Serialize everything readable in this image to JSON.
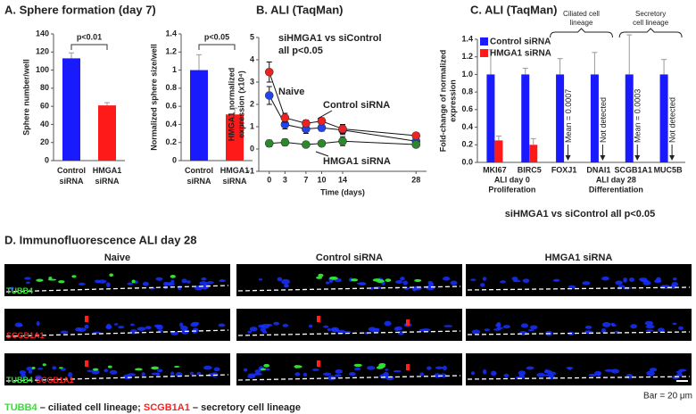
{
  "chart_data": [
    {
      "type": "bar",
      "title": "A. Sphere formation (day 7)",
      "ylabel": "Sphere number/well",
      "categories": [
        "Control siRNA",
        "HMGA1 siRNA"
      ],
      "values": [
        113,
        61
      ],
      "errors": [
        6,
        3
      ],
      "colors": [
        "#1a1aff",
        "#ff1a1a"
      ],
      "ylim": [
        0,
        140
      ],
      "yticks": [
        0,
        20,
        40,
        60,
        80,
        100,
        120,
        140
      ],
      "annotation": "p<0.01"
    },
    {
      "type": "bar",
      "ylabel": "Normalized sphere size/well",
      "categories": [
        "Control siRNA",
        "HMGA1 siRNA"
      ],
      "values": [
        1.0,
        0.51
      ],
      "errors": [
        0.17,
        0.07
      ],
      "colors": [
        "#1a1aff",
        "#ff1a1a"
      ],
      "ylim": [
        0,
        1.4
      ],
      "yticks": [
        0,
        0.2,
        0.4,
        0.6,
        0.8,
        1,
        1.2,
        1.4
      ],
      "annotation": "p<0.05"
    },
    {
      "type": "line",
      "title": "B. ALI (TaqMan)",
      "xlabel": "Time (days)",
      "ylabel": "HMGA1 normalized expression (x10⁴)",
      "x": [
        0,
        3,
        7,
        10,
        14,
        28
      ],
      "xlim": [
        -2,
        30
      ],
      "xticks": [
        0,
        3,
        7,
        10,
        14,
        28
      ],
      "ylim": [
        -1,
        5
      ],
      "yticks": [
        -1,
        0,
        1,
        2,
        3,
        4,
        5
      ],
      "series": [
        {
          "name": "Naive",
          "color": "#2244ee",
          "values": [
            2.4,
            1.1,
            0.9,
            0.95,
            0.85,
            0.35
          ],
          "errors": [
            0.4,
            0.2,
            0.2,
            0.15,
            0.2,
            0.1
          ]
        },
        {
          "name": "Control siRNA",
          "color": "#ee2222",
          "values": [
            3.45,
            1.4,
            1.15,
            1.25,
            0.9,
            0.6
          ],
          "errors": [
            0.45,
            0.2,
            0.15,
            0.15,
            0.2,
            0.1
          ]
        },
        {
          "name": "HMGA1 siRNA",
          "color": "#2a8a2a",
          "values": [
            0.25,
            0.3,
            0.2,
            0.25,
            0.35,
            0.2
          ],
          "errors": [
            0.15,
            0.15,
            0.1,
            0.1,
            0.2,
            0.1
          ]
        }
      ],
      "annotations": [
        "siHMGA1 vs siControl",
        "all p<0.05"
      ]
    },
    {
      "type": "bar",
      "title": "C. ALI (TaqMan)",
      "ylabel": "Fold-change of normalized expression",
      "categories": [
        "MKI67",
        "BIRC5",
        "FOXJ1",
        "DNAI1",
        "SCGB1A1",
        "MUC5B"
      ],
      "series": [
        {
          "name": "Control siRNA",
          "color": "#1a1aff",
          "values": [
            1,
            1,
            1,
            1,
            1,
            1
          ],
          "errors": [
            0.28,
            0.07,
            0.18,
            0.25,
            0.45,
            0.17
          ]
        },
        {
          "name": "HMGA1 siRNA",
          "color": "#ff1a1a",
          "values": [
            0.25,
            0.2,
            0.0007,
            null,
            0.0003,
            null
          ],
          "errors": [
            0.05,
            0.07,
            null,
            null,
            null,
            null
          ],
          "value_labels": [
            null,
            null,
            "Mean = 0.0007",
            "Not detected",
            "Mean = 0.0003",
            "Not detected"
          ]
        }
      ],
      "ylim": [
        0,
        1.4
      ],
      "yticks": [
        {
          "value": 0,
          "label": "0.0"
        },
        {
          "value": 0.2,
          "label": "0.2"
        },
        {
          "value": 0.4,
          "label": "0.4"
        },
        {
          "value": 0.6,
          "label": "0.6"
        },
        {
          "value": 0.8,
          "label": "0.8"
        },
        {
          "value": 1,
          "label": "1.0"
        },
        {
          "value": 1.2,
          "label": "1.2"
        },
        {
          "value": 1.4,
          "label": "1.4"
        }
      ],
      "legend": "upper left",
      "groups": [
        {
          "timepoint": "ALI day 0",
          "process": "Proliferation"
        },
        {
          "timepoint": "ALI day 28",
          "process": "Differentiation"
        }
      ],
      "lineages": [
        "Ciliated cell lineage",
        "Secretory cell lineage"
      ],
      "footnote": "siHMGA1 vs siControl all p<0.05"
    }
  ],
  "panel_d": {
    "title": "D. Immunofluorescence ALI day 28",
    "columns": [
      "Naive",
      "Control siRNA",
      "HMGA1 siRNA"
    ],
    "rows": [
      [
        "TUBB4"
      ],
      [
        "SCGB1A1"
      ],
      [
        "TUBB4",
        "SCGB1A1"
      ]
    ],
    "scale_bar": "Bar = 20 μm",
    "caption": [
      "TUBB4",
      " – ciliated cell lineage; ",
      "SCGB1A1",
      " – secretory cell lineage"
    ]
  }
}
